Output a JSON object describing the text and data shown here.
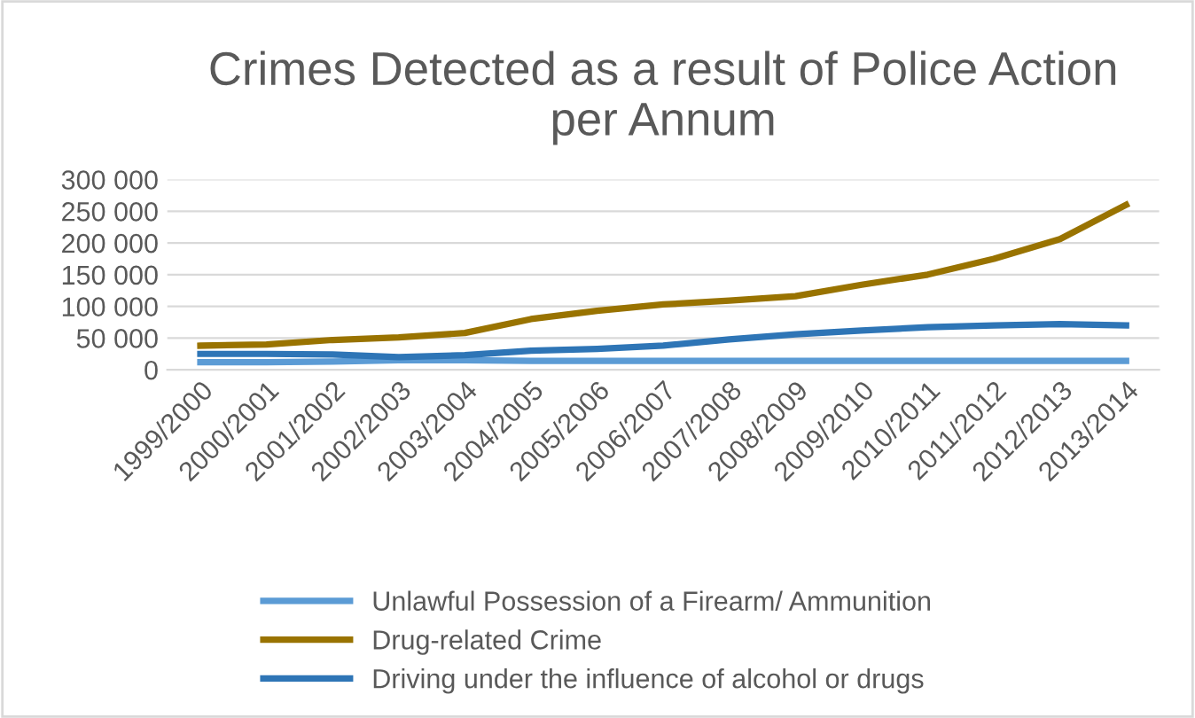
{
  "chart_data": {
    "type": "line",
    "title": "Crimes Detected as a result of Police Action\nper Annum",
    "categories": [
      "1999/2000",
      "2000/2001",
      "2001/2002",
      "2002/2003",
      "2003/2004",
      "2004/2005",
      "2005/2006",
      "2006/2007",
      "2007/2008",
      "2008/2009",
      "2009/2010",
      "2010/2011",
      "2011/2012",
      "2012/2013",
      "2013/2014"
    ],
    "series": [
      {
        "name": "Unlawful Possession of a Firearm/ Ammunition",
        "color": "#5b9bd5",
        "values": [
          12000,
          12000,
          13000,
          15000,
          15000,
          14000,
          14000,
          14000,
          14000,
          14000,
          14000,
          14000,
          14000,
          14000,
          14000
        ]
      },
      {
        "name": "Drug-related Crime",
        "color": "#997300",
        "values": [
          38000,
          40000,
          47000,
          51000,
          58000,
          80000,
          93000,
          103000,
          109000,
          116000,
          134000,
          150000,
          175000,
          206000,
          260000
        ]
      },
      {
        "name": "Driving under the influence of alcohol or drugs",
        "color": "#2e75b6",
        "values": [
          25000,
          25000,
          24000,
          20000,
          23000,
          30000,
          33000,
          38000,
          48000,
          56000,
          62000,
          67000,
          70000,
          72000,
          70000
        ]
      }
    ],
    "ylim": [
      0,
      300000
    ],
    "yticks": [
      {
        "value": 0,
        "label": "0"
      },
      {
        "value": 50000,
        "label": "50 000"
      },
      {
        "value": 100000,
        "label": "100 000"
      },
      {
        "value": 150000,
        "label": "150 000"
      },
      {
        "value": 200000,
        "label": "200 000"
      },
      {
        "value": 250000,
        "label": "250 000"
      },
      {
        "value": 300000,
        "label": "300 000"
      }
    ],
    "grid": "y",
    "legend": "bottom",
    "marker": "none",
    "line_style": "solid"
  }
}
